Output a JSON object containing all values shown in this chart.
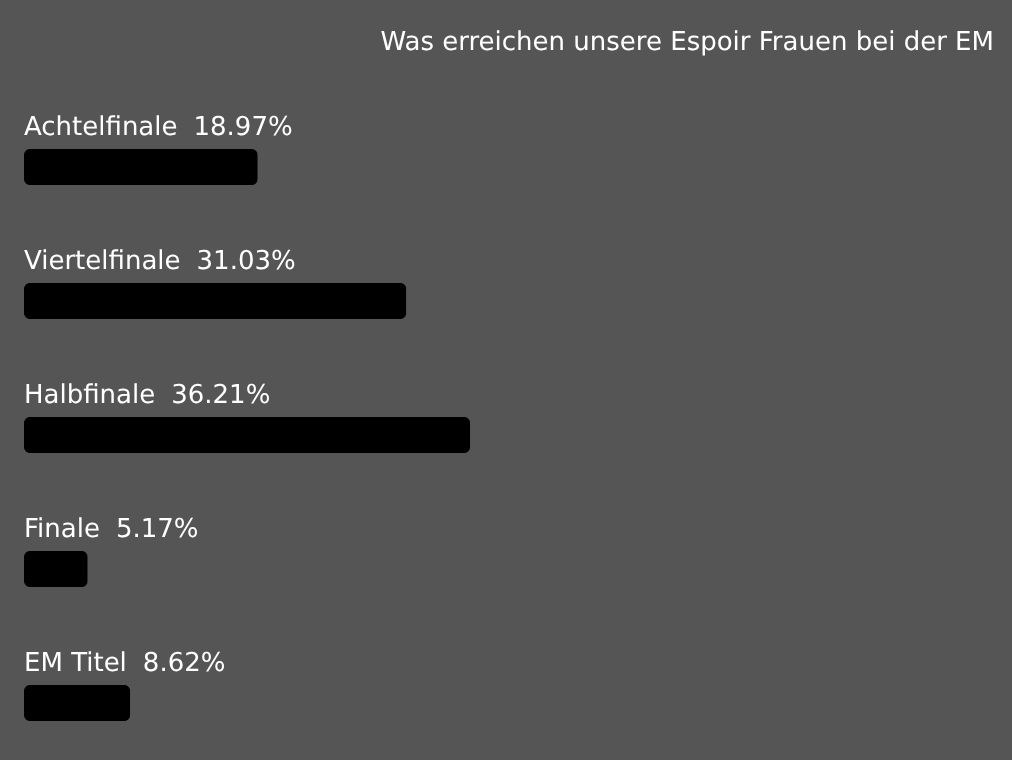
{
  "chart_data": {
    "type": "bar",
    "orientation": "horizontal",
    "title": "Was erreichen unsere Espoir Frauen bei der EM",
    "categories": [
      "Achtelfinale",
      "Viertelfinale",
      "Halbfinale",
      "Finale",
      "EM Titel"
    ],
    "values": [
      18.97,
      31.03,
      36.21,
      5.17,
      8.62
    ],
    "value_labels": [
      "18.97%",
      "31.03%",
      "36.21%",
      "5.17%",
      "8.62%"
    ],
    "color": "#000000"
  }
}
